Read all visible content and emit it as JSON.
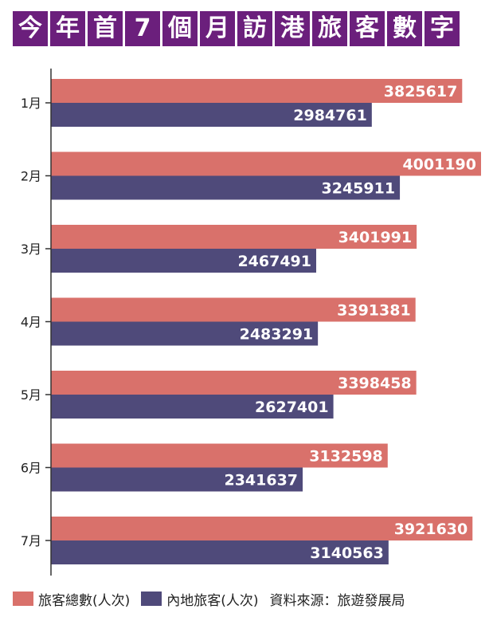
{
  "title": "今年首7個月訪港旅客數字",
  "colors": {
    "title_bg": "#6b1f7c",
    "total": "#d9716b",
    "mainland": "#4f4a7a",
    "axis": "#333333"
  },
  "source": "資料來源：旅遊發展局",
  "chart_data": {
    "type": "bar",
    "orientation": "horizontal",
    "categories": [
      "1月",
      "2月",
      "3月",
      "4月",
      "5月",
      "6月",
      "7月"
    ],
    "series": [
      {
        "name": "旅客總數(人次)",
        "values": [
          3825617,
          4001190,
          3401991,
          3391381,
          3398458,
          3132598,
          3921630
        ]
      },
      {
        "name": "內地旅客(人次)",
        "values": [
          2984761,
          3245911,
          2467491,
          2483291,
          2627401,
          2341637,
          3140563
        ]
      }
    ],
    "data_labels": [
      [
        "3825617",
        "4001190",
        "3401991",
        "3391381",
        "3398458",
        "3132598",
        "3921630"
      ],
      [
        "2984761",
        "3245911",
        "2467491",
        "2483291",
        "2627401",
        "2341637",
        "3140563"
      ]
    ],
    "xlim": [
      0,
      4001190
    ],
    "grid": false,
    "legend_position": "bottom"
  }
}
